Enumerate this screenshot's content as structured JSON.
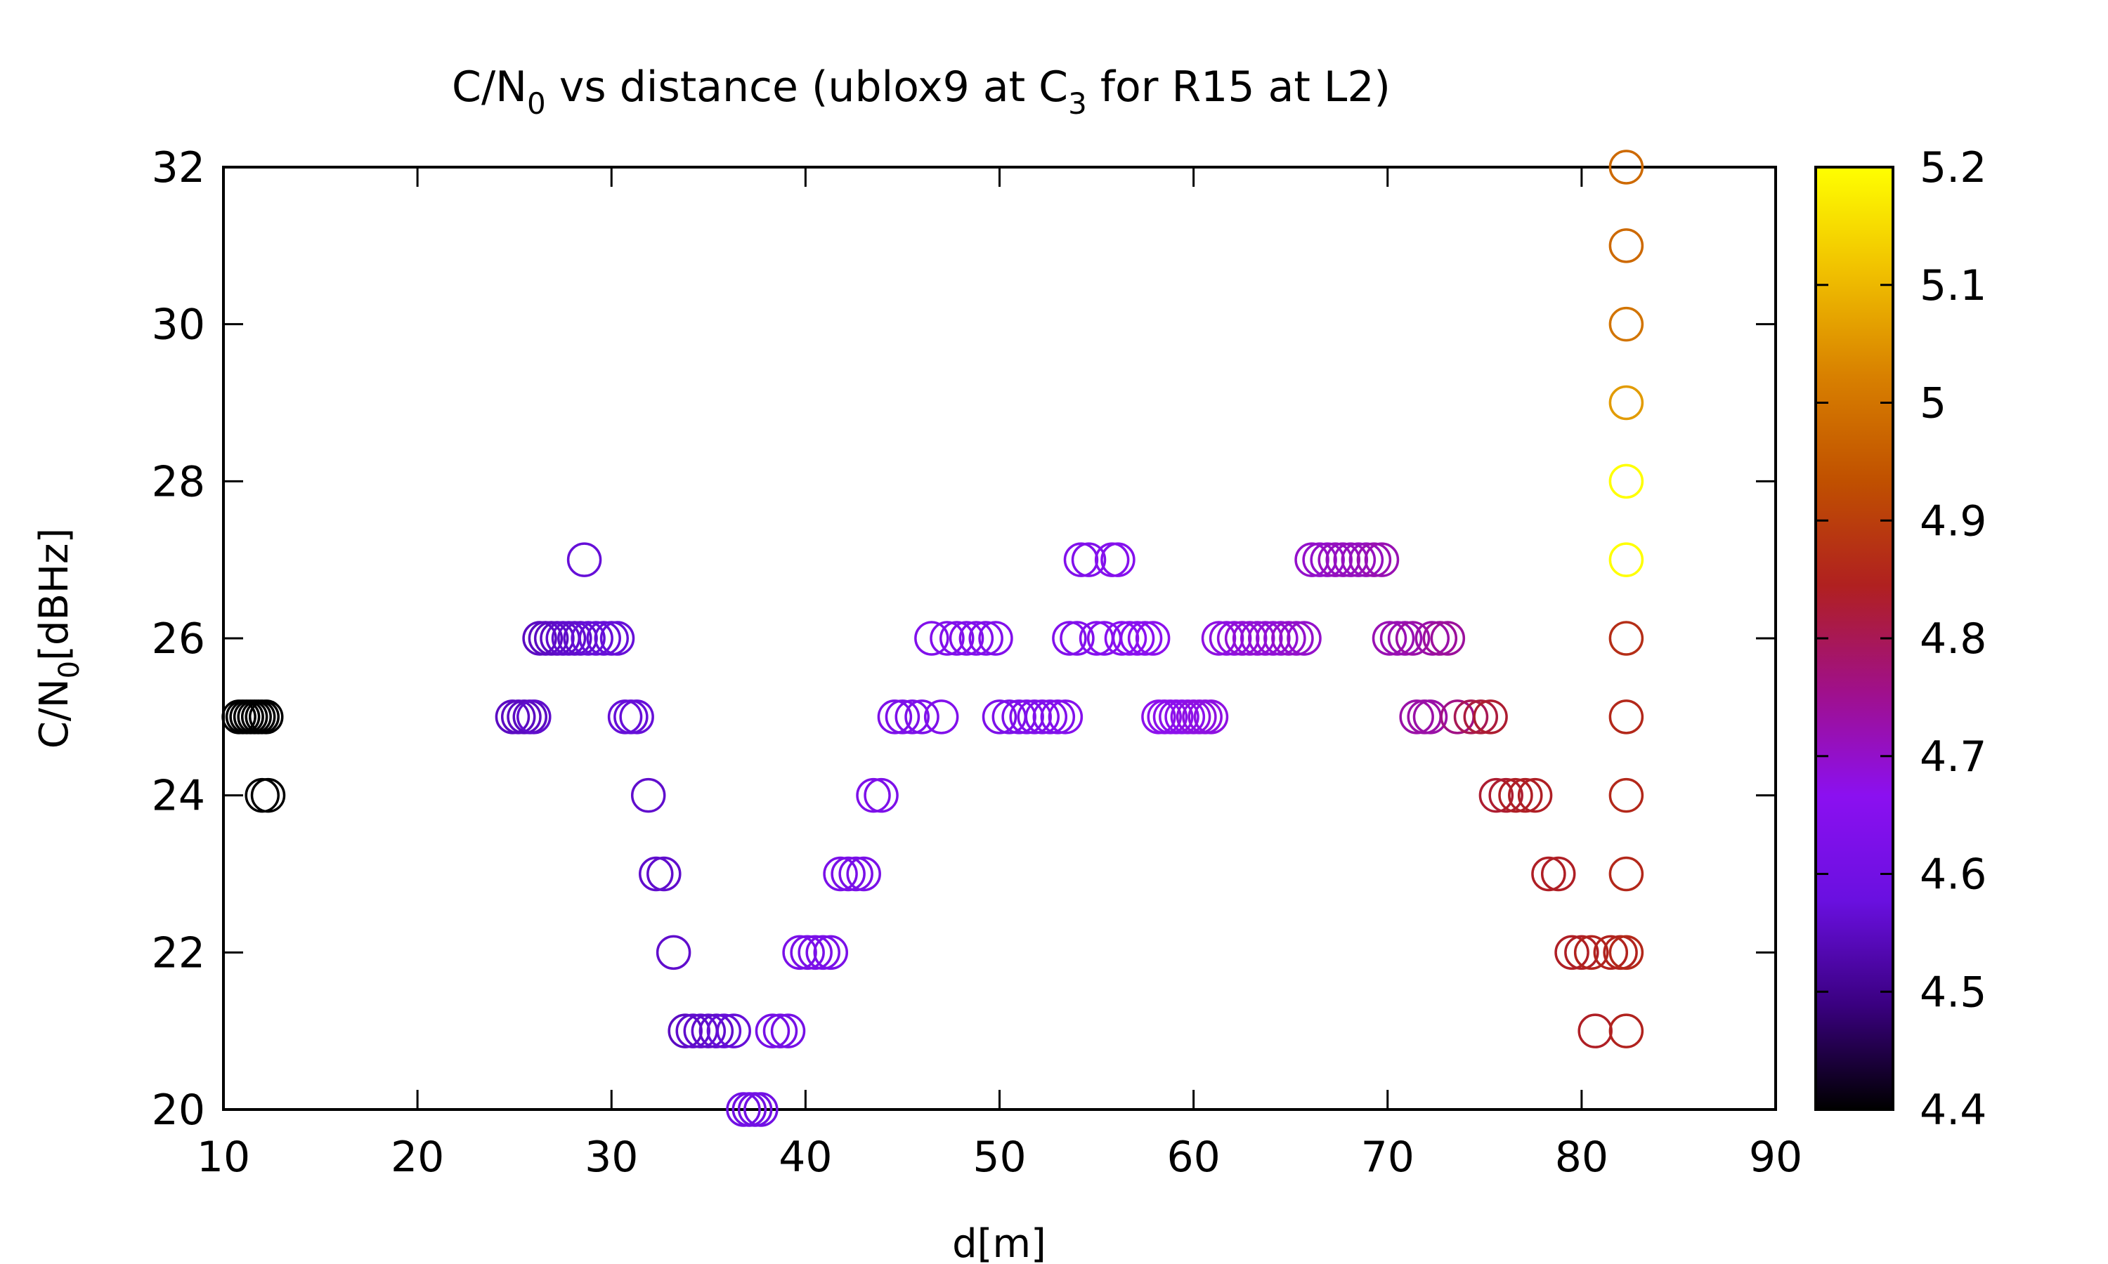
{
  "chart_data": {
    "type": "scatter",
    "title": {
      "prefix": "C/N",
      "sub1": "0",
      "middle": " vs distance (ublox9 at C",
      "sub2": "3",
      "suffix": " for R15 at L2)"
    },
    "xlabel": "d[m]",
    "ylabel": {
      "prefix": "C/N",
      "sub": "0",
      "suffix": "[dBHz]"
    },
    "xlim": [
      10,
      90
    ],
    "ylim": [
      20,
      32
    ],
    "xticks": [
      10,
      20,
      30,
      40,
      50,
      60,
      70,
      80,
      90
    ],
    "yticks": [
      20,
      22,
      24,
      26,
      28,
      30,
      32
    ],
    "colorbar": {
      "range": [
        4.4,
        5.2
      ],
      "ticks": [
        "4.4",
        "4.5",
        "4.6",
        "4.7",
        "4.8",
        "4.9",
        "5",
        "5.1",
        "5.2"
      ],
      "palette": [
        "#000000",
        "#3a0080",
        "#6a10e0",
        "#8b10f0",
        "#a0108a",
        "#b02020",
        "#c05000",
        "#d88000",
        "#f0c000",
        "#ffff00"
      ]
    },
    "marker": "open-circle",
    "grid": false,
    "points": [
      {
        "x": 10.8,
        "y": 25,
        "c": 4.4
      },
      {
        "x": 11.0,
        "y": 25,
        "c": 4.4
      },
      {
        "x": 11.2,
        "y": 25,
        "c": 4.4
      },
      {
        "x": 11.4,
        "y": 25,
        "c": 4.4
      },
      {
        "x": 11.6,
        "y": 25,
        "c": 4.4
      },
      {
        "x": 11.8,
        "y": 25,
        "c": 4.4
      },
      {
        "x": 12.0,
        "y": 25,
        "c": 4.4
      },
      {
        "x": 12.2,
        "y": 25,
        "c": 4.4
      },
      {
        "x": 12.0,
        "y": 24,
        "c": 4.4
      },
      {
        "x": 12.3,
        "y": 24,
        "c": 4.4
      },
      {
        "x": 24.9,
        "y": 25,
        "c": 4.55
      },
      {
        "x": 25.2,
        "y": 25,
        "c": 4.55
      },
      {
        "x": 25.5,
        "y": 25,
        "c": 4.55
      },
      {
        "x": 25.8,
        "y": 25,
        "c": 4.55
      },
      {
        "x": 26.0,
        "y": 25,
        "c": 4.56
      },
      {
        "x": 26.3,
        "y": 26,
        "c": 4.55
      },
      {
        "x": 26.6,
        "y": 26,
        "c": 4.55
      },
      {
        "x": 26.9,
        "y": 26,
        "c": 4.55
      },
      {
        "x": 27.2,
        "y": 26,
        "c": 4.55
      },
      {
        "x": 27.5,
        "y": 26,
        "c": 4.56
      },
      {
        "x": 27.8,
        "y": 26,
        "c": 4.56
      },
      {
        "x": 28.1,
        "y": 26,
        "c": 4.56
      },
      {
        "x": 28.4,
        "y": 26,
        "c": 4.56
      },
      {
        "x": 28.8,
        "y": 26,
        "c": 4.57
      },
      {
        "x": 29.2,
        "y": 26,
        "c": 4.57
      },
      {
        "x": 29.6,
        "y": 26,
        "c": 4.57
      },
      {
        "x": 30.0,
        "y": 26,
        "c": 4.57
      },
      {
        "x": 30.3,
        "y": 26,
        "c": 4.57
      },
      {
        "x": 28.6,
        "y": 27,
        "c": 4.57
      },
      {
        "x": 30.7,
        "y": 25,
        "c": 4.57
      },
      {
        "x": 31.0,
        "y": 25,
        "c": 4.57
      },
      {
        "x": 31.3,
        "y": 25,
        "c": 4.57
      },
      {
        "x": 31.9,
        "y": 24,
        "c": 4.56
      },
      {
        "x": 32.3,
        "y": 23,
        "c": 4.56
      },
      {
        "x": 32.7,
        "y": 23,
        "c": 4.56
      },
      {
        "x": 33.2,
        "y": 22,
        "c": 4.56
      },
      {
        "x": 33.8,
        "y": 21,
        "c": 4.55
      },
      {
        "x": 34.2,
        "y": 21,
        "c": 4.56
      },
      {
        "x": 34.6,
        "y": 21,
        "c": 4.56
      },
      {
        "x": 35.0,
        "y": 21,
        "c": 4.56
      },
      {
        "x": 35.4,
        "y": 21,
        "c": 4.56
      },
      {
        "x": 35.8,
        "y": 21,
        "c": 4.57
      },
      {
        "x": 36.3,
        "y": 21,
        "c": 4.57
      },
      {
        "x": 36.8,
        "y": 20,
        "c": 4.6
      },
      {
        "x": 37.1,
        "y": 20,
        "c": 4.6
      },
      {
        "x": 37.4,
        "y": 20,
        "c": 4.6
      },
      {
        "x": 37.7,
        "y": 20,
        "c": 4.6
      },
      {
        "x": 38.3,
        "y": 21,
        "c": 4.61
      },
      {
        "x": 38.7,
        "y": 21,
        "c": 4.61
      },
      {
        "x": 39.1,
        "y": 21,
        "c": 4.61
      },
      {
        "x": 39.7,
        "y": 22,
        "c": 4.62
      },
      {
        "x": 40.1,
        "y": 22,
        "c": 4.62
      },
      {
        "x": 40.5,
        "y": 22,
        "c": 4.62
      },
      {
        "x": 40.9,
        "y": 22,
        "c": 4.62
      },
      {
        "x": 41.3,
        "y": 22,
        "c": 4.62
      },
      {
        "x": 41.8,
        "y": 23,
        "c": 4.62
      },
      {
        "x": 42.2,
        "y": 23,
        "c": 4.62
      },
      {
        "x": 42.6,
        "y": 23,
        "c": 4.62
      },
      {
        "x": 43.0,
        "y": 23,
        "c": 4.62
      },
      {
        "x": 43.5,
        "y": 24,
        "c": 4.63
      },
      {
        "x": 43.9,
        "y": 24,
        "c": 4.63
      },
      {
        "x": 44.6,
        "y": 25,
        "c": 4.63
      },
      {
        "x": 45.0,
        "y": 25,
        "c": 4.63
      },
      {
        "x": 45.5,
        "y": 25,
        "c": 4.63
      },
      {
        "x": 46.0,
        "y": 25,
        "c": 4.63
      },
      {
        "x": 47.0,
        "y": 25,
        "c": 4.64
      },
      {
        "x": 46.5,
        "y": 26,
        "c": 4.64
      },
      {
        "x": 47.3,
        "y": 26,
        "c": 4.64
      },
      {
        "x": 47.8,
        "y": 26,
        "c": 4.64
      },
      {
        "x": 48.3,
        "y": 26,
        "c": 4.64
      },
      {
        "x": 48.8,
        "y": 26,
        "c": 4.64
      },
      {
        "x": 49.3,
        "y": 26,
        "c": 4.64
      },
      {
        "x": 49.8,
        "y": 26,
        "c": 4.64
      },
      {
        "x": 50.0,
        "y": 25,
        "c": 4.63
      },
      {
        "x": 50.5,
        "y": 25,
        "c": 4.63
      },
      {
        "x": 51.0,
        "y": 25,
        "c": 4.63
      },
      {
        "x": 51.4,
        "y": 25,
        "c": 4.64
      },
      {
        "x": 51.8,
        "y": 25,
        "c": 4.64
      },
      {
        "x": 52.2,
        "y": 25,
        "c": 4.64
      },
      {
        "x": 52.6,
        "y": 25,
        "c": 4.64
      },
      {
        "x": 53.0,
        "y": 25,
        "c": 4.64
      },
      {
        "x": 53.4,
        "y": 25,
        "c": 4.65
      },
      {
        "x": 53.6,
        "y": 26,
        "c": 4.64
      },
      {
        "x": 54.0,
        "y": 26,
        "c": 4.64
      },
      {
        "x": 54.2,
        "y": 27,
        "c": 4.64
      },
      {
        "x": 54.6,
        "y": 27,
        "c": 4.64
      },
      {
        "x": 55.0,
        "y": 26,
        "c": 4.65
      },
      {
        "x": 55.4,
        "y": 26,
        "c": 4.65
      },
      {
        "x": 55.8,
        "y": 27,
        "c": 4.65
      },
      {
        "x": 56.1,
        "y": 27,
        "c": 4.65
      },
      {
        "x": 56.3,
        "y": 26,
        "c": 4.66
      },
      {
        "x": 56.7,
        "y": 26,
        "c": 4.66
      },
      {
        "x": 57.1,
        "y": 26,
        "c": 4.66
      },
      {
        "x": 57.5,
        "y": 26,
        "c": 4.66
      },
      {
        "x": 57.9,
        "y": 26,
        "c": 4.67
      },
      {
        "x": 58.2,
        "y": 25,
        "c": 4.67
      },
      {
        "x": 58.5,
        "y": 25,
        "c": 4.67
      },
      {
        "x": 58.8,
        "y": 25,
        "c": 4.67
      },
      {
        "x": 59.1,
        "y": 25,
        "c": 4.67
      },
      {
        "x": 59.4,
        "y": 25,
        "c": 4.67
      },
      {
        "x": 59.7,
        "y": 25,
        "c": 4.67
      },
      {
        "x": 60.0,
        "y": 25,
        "c": 4.68
      },
      {
        "x": 60.3,
        "y": 25,
        "c": 4.68
      },
      {
        "x": 60.6,
        "y": 25,
        "c": 4.68
      },
      {
        "x": 60.9,
        "y": 25,
        "c": 4.68
      },
      {
        "x": 61.3,
        "y": 26,
        "c": 4.68
      },
      {
        "x": 61.7,
        "y": 26,
        "c": 4.68
      },
      {
        "x": 62.1,
        "y": 26,
        "c": 4.68
      },
      {
        "x": 62.5,
        "y": 26,
        "c": 4.69
      },
      {
        "x": 62.9,
        "y": 26,
        "c": 4.69
      },
      {
        "x": 63.3,
        "y": 26,
        "c": 4.69
      },
      {
        "x": 63.7,
        "y": 26,
        "c": 4.69
      },
      {
        "x": 64.1,
        "y": 26,
        "c": 4.69
      },
      {
        "x": 64.5,
        "y": 26,
        "c": 4.69
      },
      {
        "x": 64.9,
        "y": 26,
        "c": 4.7
      },
      {
        "x": 65.3,
        "y": 26,
        "c": 4.7
      },
      {
        "x": 65.7,
        "y": 26,
        "c": 4.7
      },
      {
        "x": 66.1,
        "y": 27,
        "c": 4.7
      },
      {
        "x": 66.5,
        "y": 27,
        "c": 4.7
      },
      {
        "x": 66.9,
        "y": 27,
        "c": 4.7
      },
      {
        "x": 67.3,
        "y": 27,
        "c": 4.71
      },
      {
        "x": 67.7,
        "y": 27,
        "c": 4.71
      },
      {
        "x": 68.1,
        "y": 27,
        "c": 4.71
      },
      {
        "x": 68.5,
        "y": 27,
        "c": 4.71
      },
      {
        "x": 68.9,
        "y": 27,
        "c": 4.71
      },
      {
        "x": 69.3,
        "y": 27,
        "c": 4.72
      },
      {
        "x": 69.7,
        "y": 27,
        "c": 4.72
      },
      {
        "x": 70.1,
        "y": 26,
        "c": 4.72
      },
      {
        "x": 70.5,
        "y": 26,
        "c": 4.72
      },
      {
        "x": 70.9,
        "y": 26,
        "c": 4.72
      },
      {
        "x": 71.3,
        "y": 26,
        "c": 4.73
      },
      {
        "x": 71.5,
        "y": 25,
        "c": 4.73
      },
      {
        "x": 71.9,
        "y": 25,
        "c": 4.73
      },
      {
        "x": 72.2,
        "y": 25,
        "c": 4.73
      },
      {
        "x": 72.3,
        "y": 26,
        "c": 4.73
      },
      {
        "x": 72.7,
        "y": 26,
        "c": 4.74
      },
      {
        "x": 73.1,
        "y": 26,
        "c": 4.74
      },
      {
        "x": 73.6,
        "y": 25,
        "c": 4.76
      },
      {
        "x": 74.3,
        "y": 25,
        "c": 4.8
      },
      {
        "x": 74.8,
        "y": 25,
        "c": 4.82
      },
      {
        "x": 75.3,
        "y": 25,
        "c": 4.83
      },
      {
        "x": 75.6,
        "y": 24,
        "c": 4.83
      },
      {
        "x": 76.1,
        "y": 24,
        "c": 4.83
      },
      {
        "x": 76.6,
        "y": 24,
        "c": 4.84
      },
      {
        "x": 77.1,
        "y": 24,
        "c": 4.84
      },
      {
        "x": 77.6,
        "y": 24,
        "c": 4.84
      },
      {
        "x": 78.3,
        "y": 23,
        "c": 4.84
      },
      {
        "x": 78.8,
        "y": 23,
        "c": 4.84
      },
      {
        "x": 79.5,
        "y": 22,
        "c": 4.84
      },
      {
        "x": 80.0,
        "y": 22,
        "c": 4.84
      },
      {
        "x": 80.5,
        "y": 22,
        "c": 4.85
      },
      {
        "x": 81.5,
        "y": 22,
        "c": 4.85
      },
      {
        "x": 82.0,
        "y": 22,
        "c": 4.85
      },
      {
        "x": 80.7,
        "y": 21,
        "c": 4.84
      },
      {
        "x": 82.3,
        "y": 21,
        "c": 4.85
      },
      {
        "x": 82.3,
        "y": 22,
        "c": 4.86
      },
      {
        "x": 82.3,
        "y": 23,
        "c": 4.86
      },
      {
        "x": 82.3,
        "y": 24,
        "c": 4.86
      },
      {
        "x": 82.3,
        "y": 25,
        "c": 4.86
      },
      {
        "x": 82.3,
        "y": 26,
        "c": 4.87
      },
      {
        "x": 82.3,
        "y": 27,
        "c": 5.2
      },
      {
        "x": 82.3,
        "y": 28,
        "c": 5.2
      },
      {
        "x": 82.3,
        "y": 29,
        "c": 5.06
      },
      {
        "x": 82.3,
        "y": 30,
        "c": 5.0
      },
      {
        "x": 82.3,
        "y": 31,
        "c": 4.98
      },
      {
        "x": 82.3,
        "y": 32,
        "c": 4.98
      }
    ]
  }
}
